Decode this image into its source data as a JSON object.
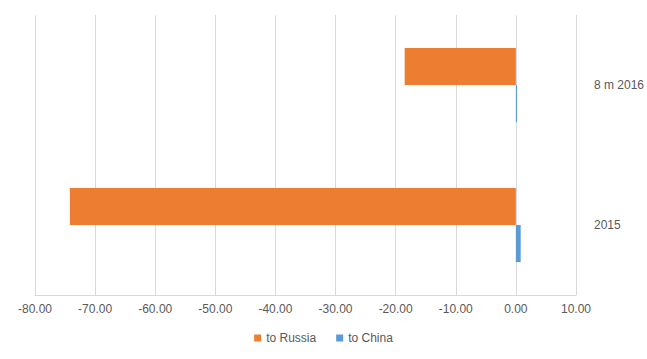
{
  "chart_data": {
    "type": "bar",
    "orientation": "horizontal",
    "categories": [
      "2015",
      "8 m 2016"
    ],
    "series": [
      {
        "name": "to Russia",
        "color": "#ed7d31",
        "values": [
          -74.2,
          -18.5
        ]
      },
      {
        "name": "to China",
        "color": "#5b9bd5",
        "values": [
          0.8,
          0.2
        ]
      }
    ],
    "xlim": [
      -80,
      10
    ],
    "xticks": [
      {
        "value": -80,
        "label": "-80.00"
      },
      {
        "value": -70,
        "label": "-70.00"
      },
      {
        "value": -60,
        "label": "-60.00"
      },
      {
        "value": -50,
        "label": "-50.00"
      },
      {
        "value": -40,
        "label": "-40.00"
      },
      {
        "value": -30,
        "label": "-30.00"
      },
      {
        "value": -20,
        "label": "-20.00"
      },
      {
        "value": -10,
        "label": "-10.00"
      },
      {
        "value": 0,
        "label": "0.00"
      },
      {
        "value": 10,
        "label": "10.00"
      }
    ],
    "grid": true,
    "legend": "bottom"
  }
}
